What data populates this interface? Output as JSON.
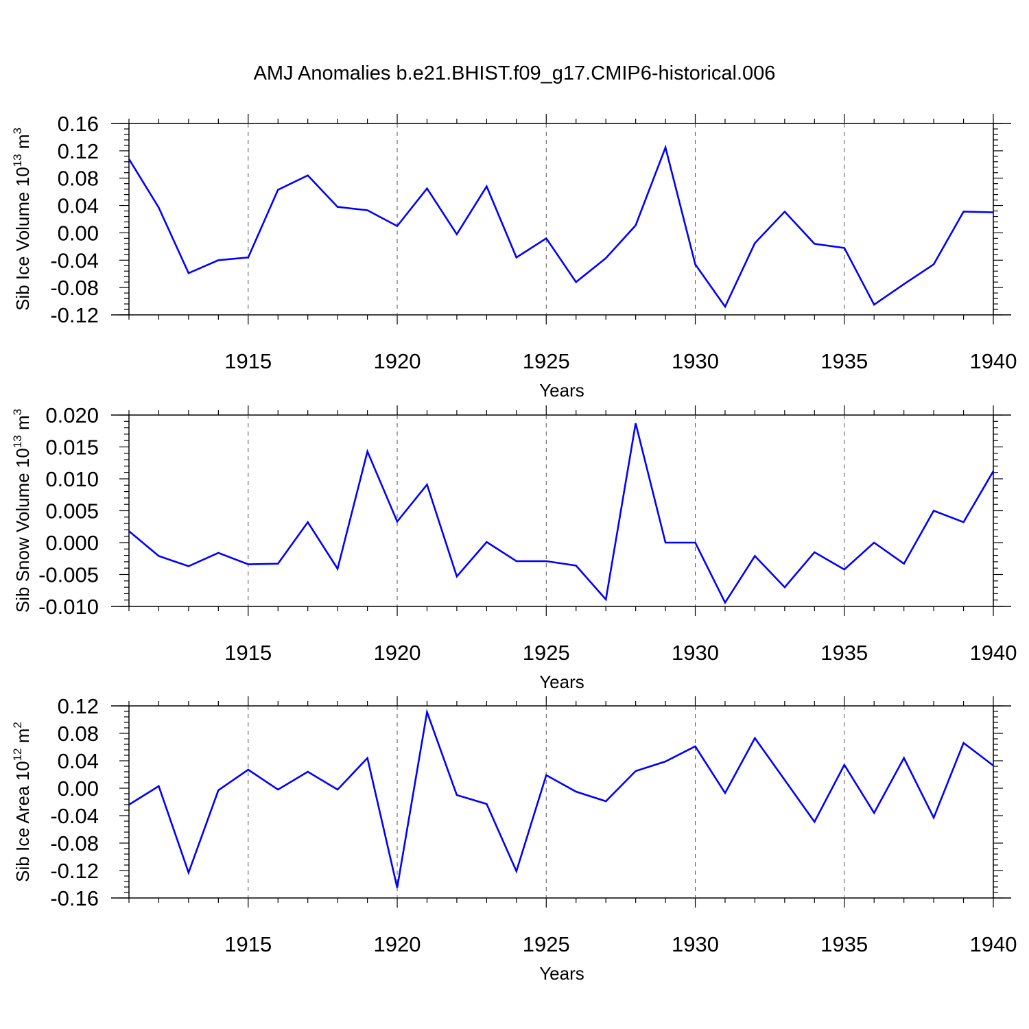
{
  "figure_title": "AMJ Anomalies b.e21.BHIST.f09_g17.CMIP6-historical.006",
  "chart_data": [
    {
      "type": "line",
      "ylabel_main": "Sib Ice Volume 10",
      "ylabel_exp": "13",
      "ylabel_unit": " m",
      "ylabel_unit_exp": "3",
      "xlabel": "Years",
      "xlim": [
        1911,
        1940
      ],
      "ylim": [
        -0.12,
        0.16
      ],
      "ytick_labels": [
        "0.16",
        "0.12",
        "0.08",
        "0.04",
        "0.00",
        "-0.04",
        "-0.08",
        "-0.12"
      ],
      "xtick_labels": [
        "1915",
        "1920",
        "1925",
        "1930",
        "1935",
        "1940"
      ],
      "x": [
        1911,
        1912,
        1913,
        1914,
        1915,
        1916,
        1917,
        1918,
        1919,
        1920,
        1921,
        1922,
        1923,
        1924,
        1925,
        1926,
        1927,
        1928,
        1929,
        1930,
        1931,
        1932,
        1933,
        1934,
        1935,
        1936,
        1937,
        1938,
        1939,
        1940
      ],
      "values": [
        0.108,
        0.037,
        -0.059,
        -0.04,
        -0.036,
        0.063,
        0.084,
        0.038,
        0.033,
        0.01,
        0.065,
        -0.002,
        0.068,
        -0.036,
        -0.008,
        -0.072,
        -0.037,
        0.011,
        0.125,
        -0.046,
        -0.108,
        -0.015,
        0.031,
        -0.016,
        -0.022,
        -0.105,
        -0.075,
        -0.046,
        0.031,
        0.03
      ],
      "grid": "vertical dashed at labeled years",
      "color": "#0000ff"
    },
    {
      "type": "line",
      "ylabel_main": "Sib Snow Volume 10",
      "ylabel_exp": "13",
      "ylabel_unit": " m",
      "ylabel_unit_exp": "3",
      "xlabel": "Years",
      "xlim": [
        1911,
        1940
      ],
      "ylim": [
        -0.01,
        0.02
      ],
      "ytick_labels": [
        "0.020",
        "0.015",
        "0.010",
        "0.005",
        "0.000",
        "-0.005",
        "-0.010"
      ],
      "xtick_labels": [
        "1915",
        "1920",
        "1925",
        "1930",
        "1935",
        "1940"
      ],
      "x": [
        1911,
        1912,
        1913,
        1914,
        1915,
        1916,
        1917,
        1918,
        1919,
        1920,
        1921,
        1922,
        1923,
        1924,
        1925,
        1926,
        1927,
        1928,
        1929,
        1930,
        1931,
        1932,
        1933,
        1934,
        1935,
        1936,
        1937,
        1938,
        1939,
        1940
      ],
      "values": [
        0.0018,
        -0.0021,
        -0.0037,
        -0.0016,
        -0.0034,
        -0.0033,
        0.0032,
        -0.0041,
        0.0143,
        0.0033,
        0.0091,
        -0.0053,
        0.0001,
        -0.0029,
        -0.0029,
        -0.0036,
        -0.0089,
        0.0187,
        0.0,
        0.0,
        -0.0094,
        -0.0021,
        -0.007,
        -0.0015,
        -0.0042,
        0.0,
        -0.0033,
        0.005,
        0.0032,
        0.0112
      ],
      "grid": "vertical dashed at labeled years",
      "color": "#0000ff"
    },
    {
      "type": "line",
      "ylabel_main": "Sib Ice Area 10",
      "ylabel_exp": "12",
      "ylabel_unit": " m",
      "ylabel_unit_exp": "2",
      "xlabel": "Years",
      "xlim": [
        1911,
        1940
      ],
      "ylim": [
        -0.16,
        0.12
      ],
      "ytick_labels": [
        "0.12",
        "0.08",
        "0.04",
        "0.00",
        "-0.04",
        "-0.08",
        "-0.12",
        "-0.16"
      ],
      "xtick_labels": [
        "1915",
        "1920",
        "1925",
        "1930",
        "1935",
        "1940"
      ],
      "x": [
        1911,
        1912,
        1913,
        1914,
        1915,
        1916,
        1917,
        1918,
        1919,
        1920,
        1921,
        1922,
        1923,
        1924,
        1925,
        1926,
        1927,
        1928,
        1929,
        1930,
        1931,
        1932,
        1933,
        1934,
        1935,
        1936,
        1937,
        1938,
        1939,
        1940
      ],
      "values": [
        -0.024,
        0.003,
        -0.123,
        -0.003,
        0.027,
        -0.002,
        0.024,
        -0.002,
        0.044,
        -0.145,
        0.111,
        -0.01,
        -0.023,
        -0.121,
        0.019,
        -0.005,
        -0.019,
        0.025,
        0.039,
        0.061,
        -0.007,
        0.073,
        0.012,
        -0.049,
        0.034,
        -0.036,
        0.044,
        -0.043,
        0.066,
        0.033
      ],
      "grid": "vertical dashed at labeled years",
      "color": "#0000ff"
    }
  ]
}
